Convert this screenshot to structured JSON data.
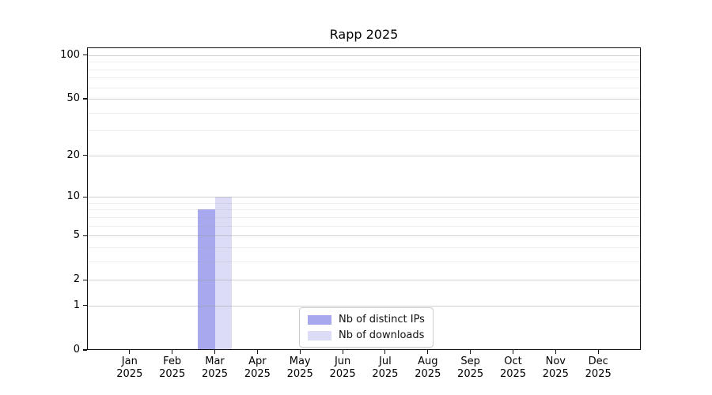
{
  "figure": {
    "title": "Rapp 2025"
  },
  "chart_data": {
    "type": "bar",
    "title": "Rapp 2025",
    "categories": [
      "Jan",
      "Feb",
      "Mar",
      "Apr",
      "May",
      "Jun",
      "Jul",
      "Aug",
      "Sep",
      "Oct",
      "Nov",
      "Dec"
    ],
    "category_year": "2025",
    "series": [
      {
        "name": "Nb of distinct IPs",
        "color": "#a8a8ee",
        "values": [
          0,
          0,
          8,
          0,
          0,
          0,
          0,
          0,
          0,
          0,
          0,
          0
        ]
      },
      {
        "name": "Nb of downloads",
        "color": "#dcdcf6",
        "values": [
          0,
          0,
          10,
          0,
          0,
          0,
          0,
          0,
          0,
          0,
          0,
          0
        ]
      }
    ],
    "yscale": "log1p",
    "ylim": [
      0,
      113
    ],
    "yticks": [
      0,
      1,
      2,
      5,
      10,
      20,
      50,
      100
    ],
    "minor_yticks": [
      3,
      4,
      6,
      7,
      8,
      9,
      30,
      40,
      60,
      70,
      80,
      90
    ],
    "grid": "horizontal",
    "legend_position": "lower center"
  },
  "colors": {
    "major_grid": "#cccccc",
    "minor_grid": "#ebebeb",
    "spine": "#111111",
    "legend_border": "#cccccc",
    "background": "#ffffff"
  }
}
